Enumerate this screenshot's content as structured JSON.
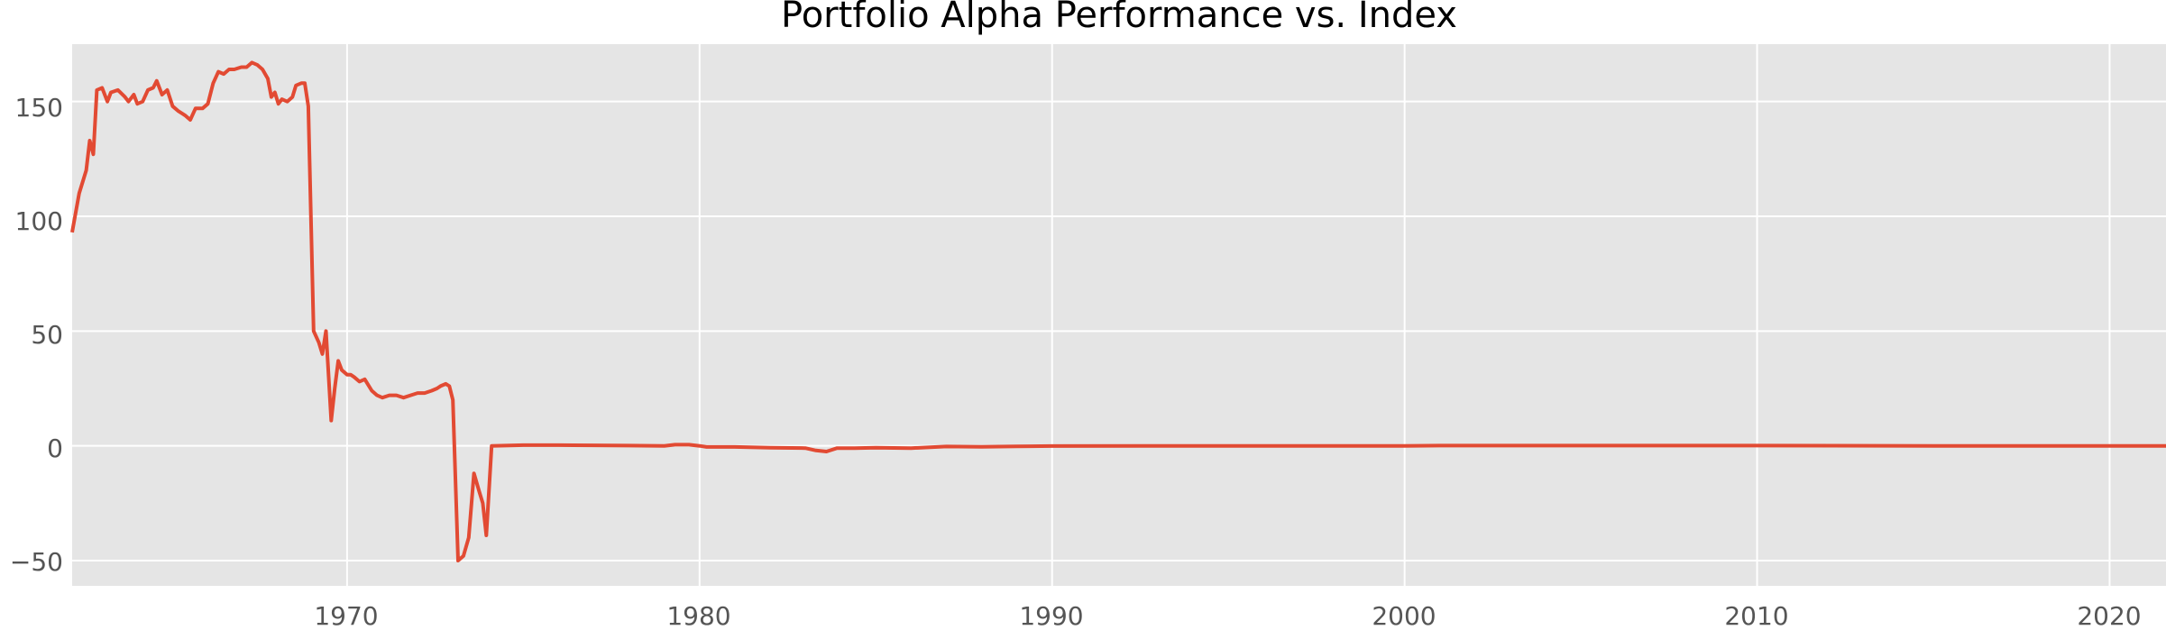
{
  "chart_data": {
    "type": "line",
    "title": "Portfolio Alpha Performance vs. Index",
    "xlabel": "",
    "ylabel": "",
    "x_ticks": [
      "1970",
      "1980",
      "1990",
      "2000",
      "2010",
      "2020"
    ],
    "y_ticks": [
      "−50",
      "0",
      "50",
      "100",
      "150"
    ],
    "xlim": [
      1962.2,
      2021.6
    ],
    "ylim": [
      -61,
      175
    ],
    "grid": true,
    "background_color": "#E5E5E5",
    "grid_color": "#FFFFFF",
    "series": [
      {
        "color": "#E24A33",
        "points": [
          [
            1962.2,
            93
          ],
          [
            1962.4,
            110
          ],
          [
            1962.6,
            120
          ],
          [
            1962.7,
            133
          ],
          [
            1962.8,
            127
          ],
          [
            1962.9,
            155
          ],
          [
            1963.05,
            156
          ],
          [
            1963.2,
            150
          ],
          [
            1963.3,
            154
          ],
          [
            1963.5,
            155
          ],
          [
            1963.7,
            152
          ],
          [
            1963.8,
            150
          ],
          [
            1963.95,
            153
          ],
          [
            1964.05,
            149
          ],
          [
            1964.2,
            150
          ],
          [
            1964.35,
            155
          ],
          [
            1964.5,
            156
          ],
          [
            1964.6,
            159
          ],
          [
            1964.75,
            153
          ],
          [
            1964.9,
            155
          ],
          [
            1965.05,
            148
          ],
          [
            1965.2,
            146
          ],
          [
            1965.4,
            144
          ],
          [
            1965.55,
            142
          ],
          [
            1965.7,
            147
          ],
          [
            1965.9,
            147
          ],
          [
            1966.05,
            149
          ],
          [
            1966.2,
            158
          ],
          [
            1966.35,
            163
          ],
          [
            1966.5,
            162
          ],
          [
            1966.65,
            164
          ],
          [
            1966.8,
            164
          ],
          [
            1967.0,
            165
          ],
          [
            1967.15,
            165
          ],
          [
            1967.3,
            167
          ],
          [
            1967.45,
            166
          ],
          [
            1967.6,
            164
          ],
          [
            1967.75,
            160
          ],
          [
            1967.85,
            152
          ],
          [
            1967.95,
            154
          ],
          [
            1968.05,
            149
          ],
          [
            1968.15,
            151
          ],
          [
            1968.3,
            150
          ],
          [
            1968.45,
            152
          ],
          [
            1968.55,
            157
          ],
          [
            1968.7,
            158
          ],
          [
            1968.8,
            158
          ],
          [
            1968.9,
            148
          ],
          [
            1969.05,
            50
          ],
          [
            1969.2,
            45
          ],
          [
            1969.3,
            40
          ],
          [
            1969.4,
            50
          ],
          [
            1969.55,
            11
          ],
          [
            1969.65,
            25
          ],
          [
            1969.75,
            37
          ],
          [
            1969.85,
            33
          ],
          [
            1970.0,
            31
          ],
          [
            1970.1,
            31
          ],
          [
            1970.2,
            30
          ],
          [
            1970.35,
            28
          ],
          [
            1970.5,
            29
          ],
          [
            1970.7,
            24
          ],
          [
            1970.85,
            22
          ],
          [
            1971.0,
            21
          ],
          [
            1971.2,
            22
          ],
          [
            1971.4,
            22
          ],
          [
            1971.6,
            21
          ],
          [
            1971.8,
            22
          ],
          [
            1972.0,
            23
          ],
          [
            1972.2,
            23
          ],
          [
            1972.4,
            24
          ],
          [
            1972.55,
            25
          ],
          [
            1972.65,
            26
          ],
          [
            1972.8,
            27
          ],
          [
            1972.9,
            26
          ],
          [
            1973.0,
            20
          ],
          [
            1973.15,
            -50
          ],
          [
            1973.3,
            -48
          ],
          [
            1973.45,
            -40
          ],
          [
            1973.6,
            -12
          ],
          [
            1973.75,
            -20
          ],
          [
            1973.85,
            -25
          ],
          [
            1973.95,
            -39
          ],
          [
            1974.1,
            0
          ],
          [
            1975.0,
            0.3
          ],
          [
            1976.0,
            0.3
          ],
          [
            1977.0,
            0.2
          ],
          [
            1978.0,
            0.1
          ],
          [
            1979.0,
            0
          ],
          [
            1979.3,
            0.5
          ],
          [
            1979.7,
            0.5
          ],
          [
            1980.0,
            0
          ],
          [
            1980.2,
            -0.5
          ],
          [
            1981.0,
            -0.5
          ],
          [
            1982.0,
            -0.8
          ],
          [
            1983.0,
            -1
          ],
          [
            1983.3,
            -2
          ],
          [
            1983.6,
            -2.5
          ],
          [
            1983.9,
            -1
          ],
          [
            1984.4,
            -1
          ],
          [
            1985.0,
            -0.8
          ],
          [
            1986.0,
            -1
          ],
          [
            1987.0,
            -0.3
          ],
          [
            1988.0,
            -0.4
          ],
          [
            1989.0,
            -0.2
          ],
          [
            1990.0,
            -0.1
          ],
          [
            1995.0,
            0
          ],
          [
            2000.0,
            0
          ],
          [
            2001.0,
            0.1
          ],
          [
            2005.0,
            0.1
          ],
          [
            2010.0,
            0.1
          ],
          [
            2015.0,
            0
          ],
          [
            2020.0,
            0
          ],
          [
            2021.6,
            0
          ]
        ]
      }
    ]
  }
}
